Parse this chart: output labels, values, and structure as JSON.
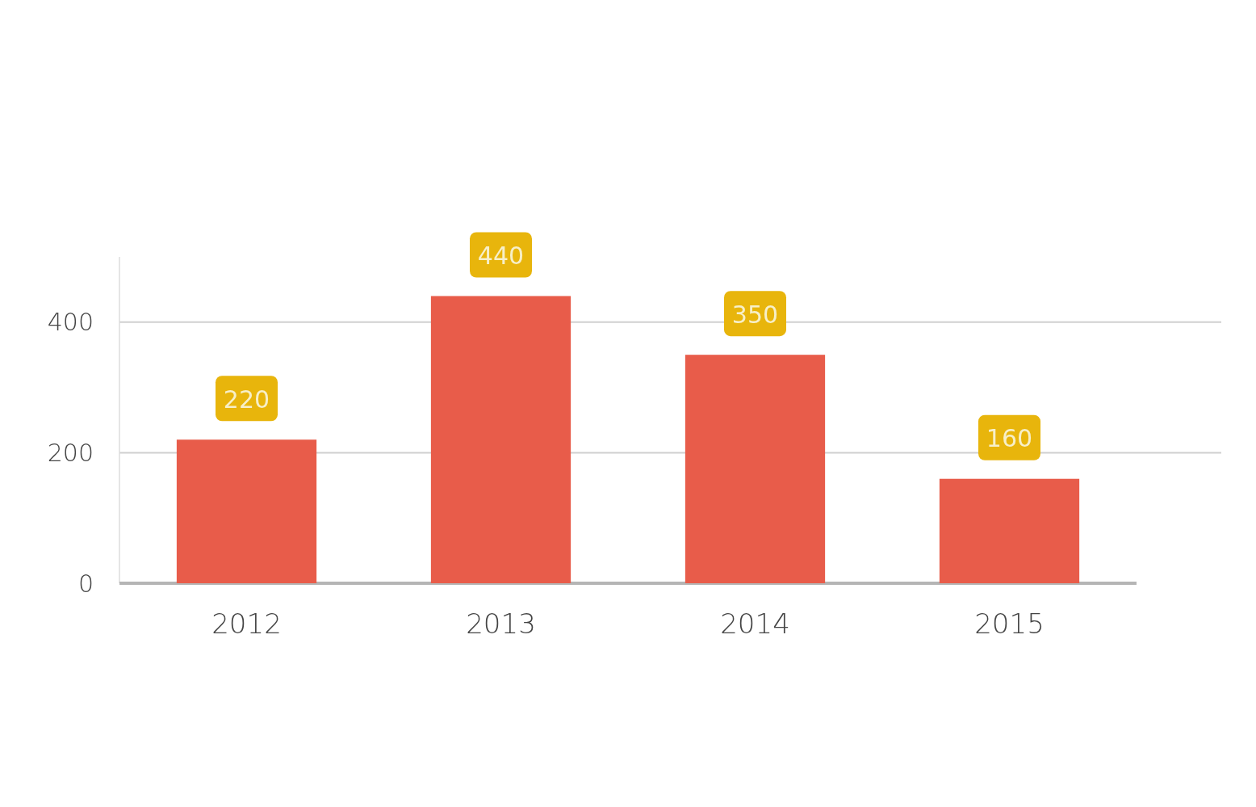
{
  "chart_data": {
    "type": "bar",
    "categories": [
      "2012",
      "2013",
      "2014",
      "2015"
    ],
    "values": [
      220,
      440,
      350,
      160
    ],
    "color": "#e85c4a",
    "ylim": [
      0,
      500
    ],
    "yticks": [
      0,
      200,
      400
    ],
    "grid": "y",
    "data_labels": true
  }
}
